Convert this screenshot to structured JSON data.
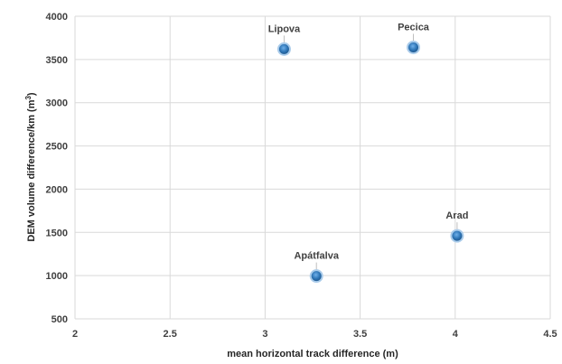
{
  "chart_data": {
    "type": "scatter",
    "xlabel": "mean horizontal track difference (m)",
    "ylabel_main": "DEM volume difference/km (m",
    "ylabel_sup": "3",
    "ylabel_end": ")",
    "xlim": [
      2,
      4.5
    ],
    "ylim": [
      500,
      4000
    ],
    "x_ticks": [
      "2",
      "2.5",
      "3",
      "3.5",
      "4",
      "4.5"
    ],
    "y_ticks": [
      "500",
      "1000",
      "1500",
      "2000",
      "2500",
      "3000",
      "3500",
      "4000"
    ],
    "grid": true,
    "legend": "none",
    "marker_color": "#2e75b6",
    "points": [
      {
        "label": "Lipova",
        "x": 3.1,
        "y": 3620
      },
      {
        "label": "Pecica",
        "x": 3.78,
        "y": 3640
      },
      {
        "label": "Arad",
        "x": 4.01,
        "y": 1460
      },
      {
        "label": "Apátfalva",
        "x": 3.27,
        "y": 995
      }
    ]
  }
}
